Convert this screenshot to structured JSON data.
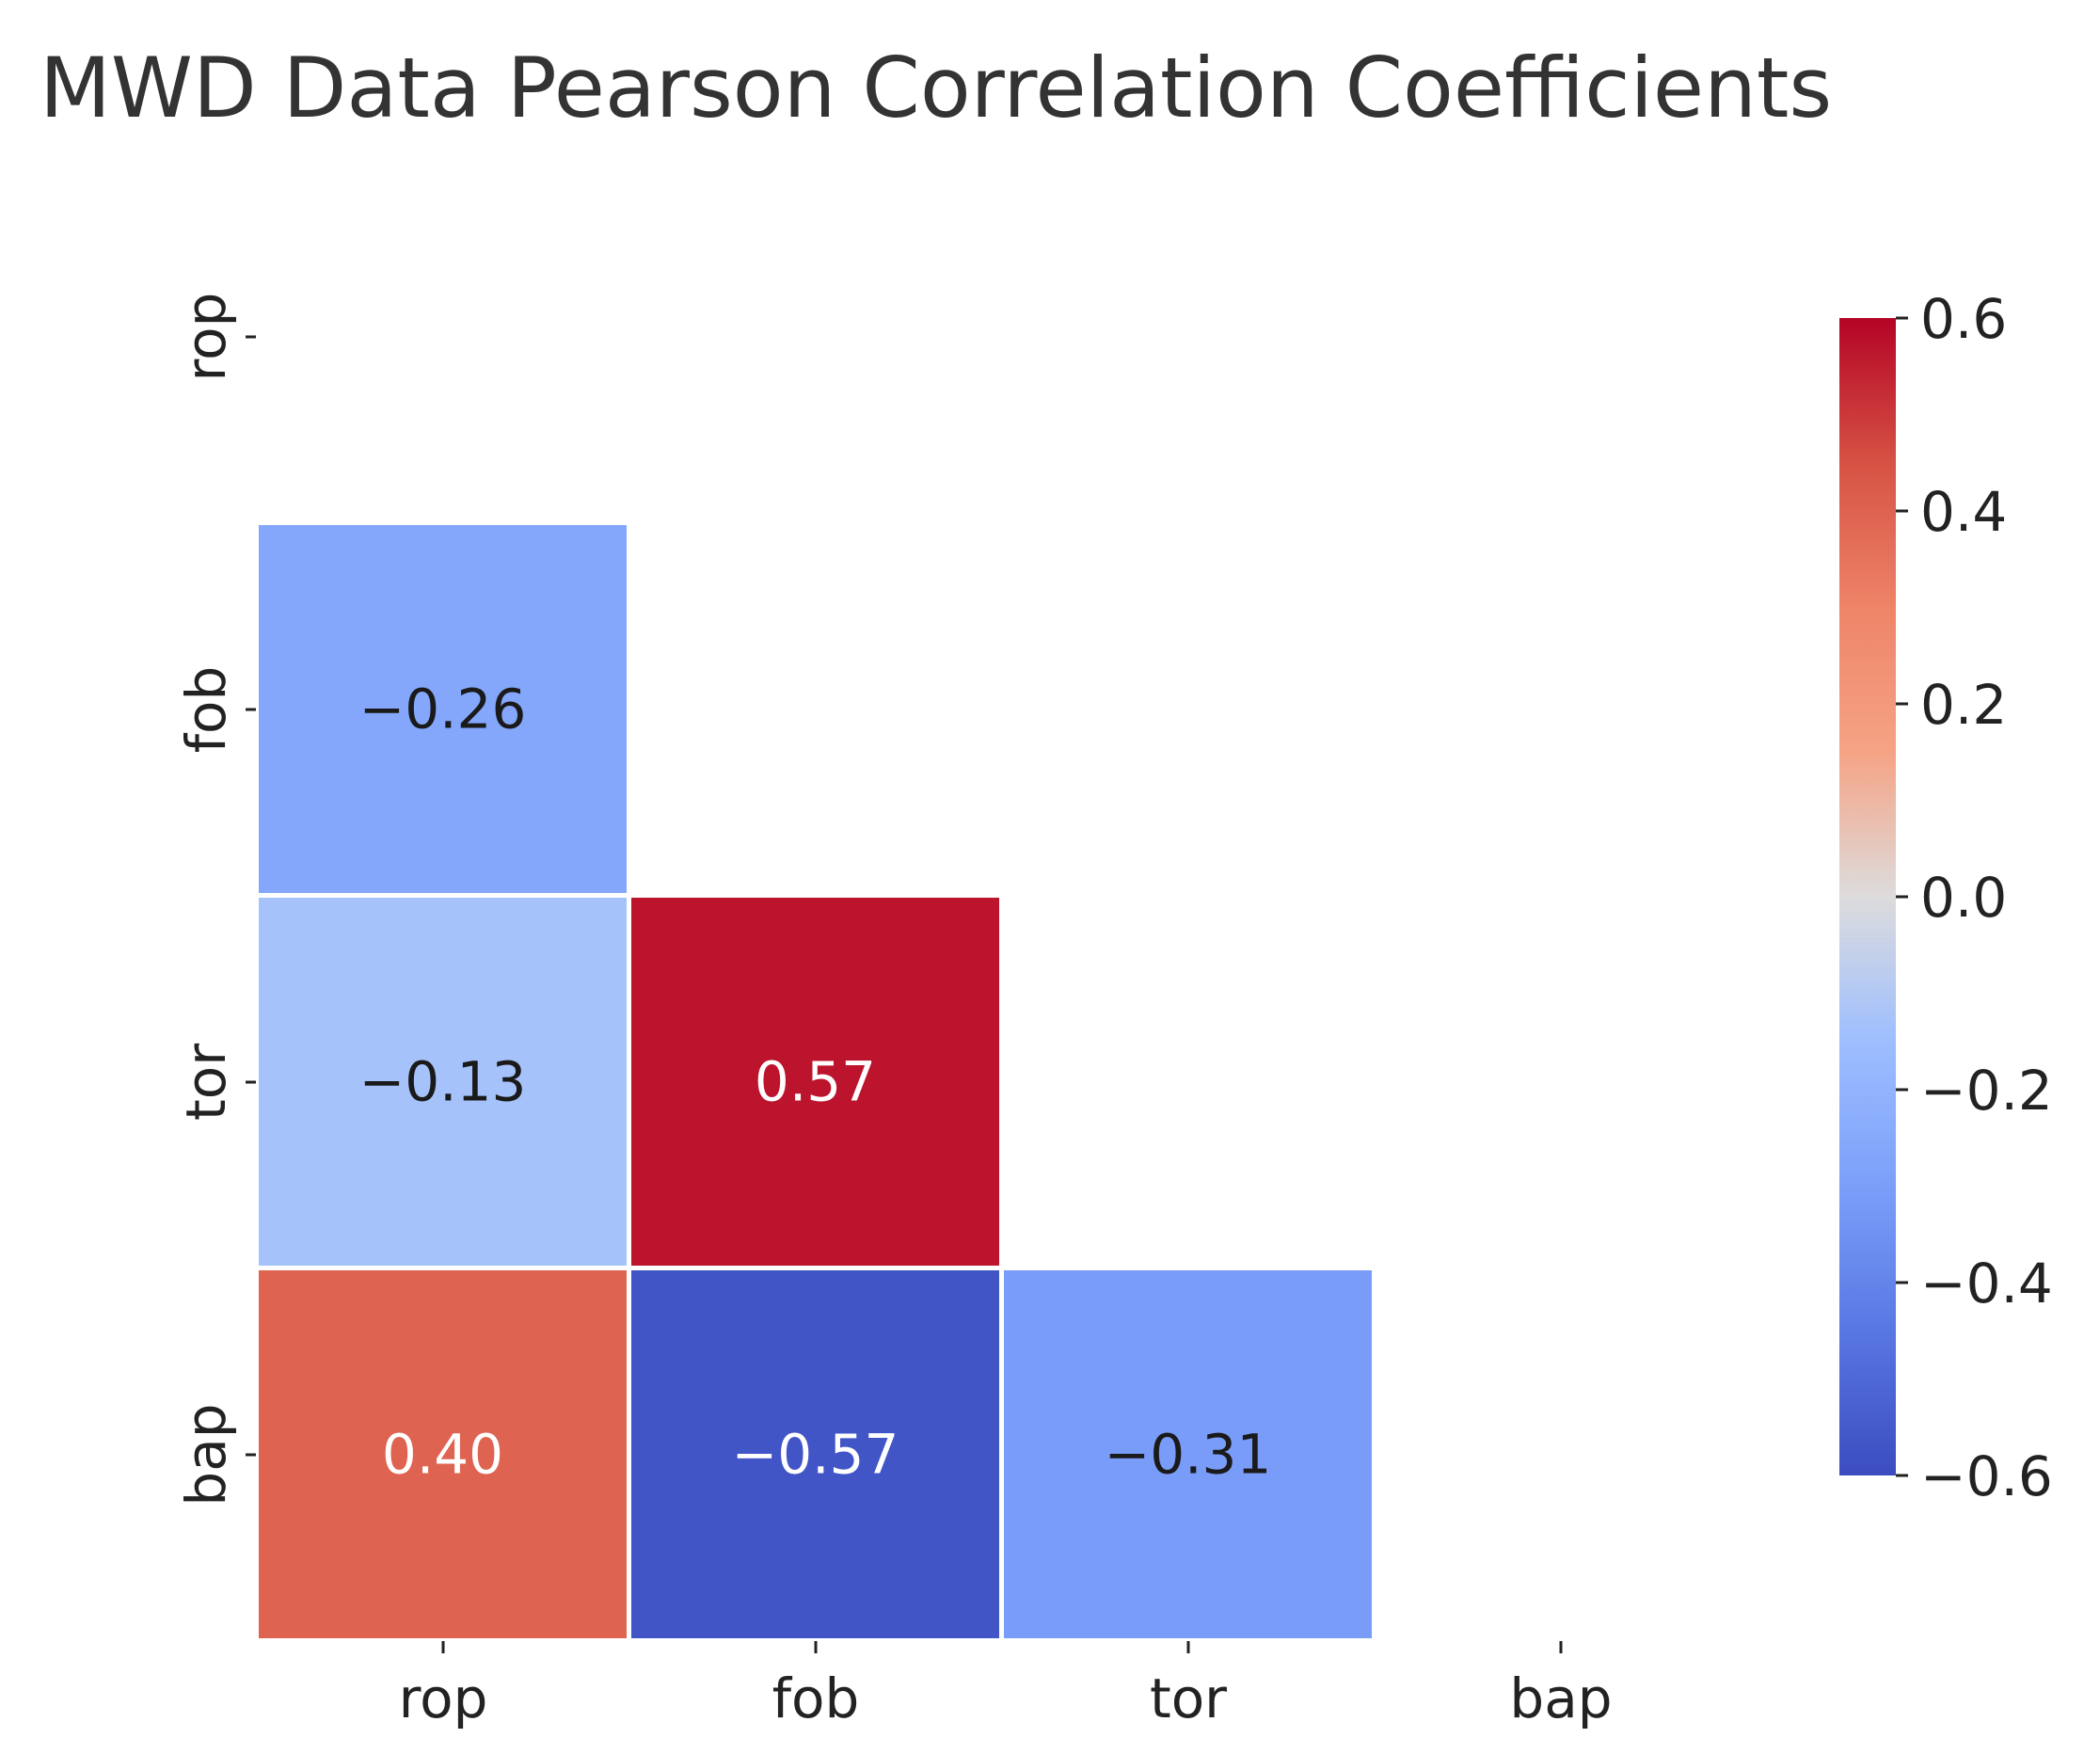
{
  "chart_data": {
    "type": "heatmap",
    "title": "MWD Data Pearson Correlation Coefficients",
    "x_categories": [
      "rop",
      "fob",
      "tor",
      "bap"
    ],
    "y_categories": [
      "rop",
      "fob",
      "tor",
      "bap"
    ],
    "mask": "upper triangle including diagonal",
    "cells": [
      {
        "row": "fob",
        "col": "rop",
        "value": -0.26,
        "label": "−0.26"
      },
      {
        "row": "tor",
        "col": "rop",
        "value": -0.13,
        "label": "−0.13"
      },
      {
        "row": "tor",
        "col": "fob",
        "value": 0.57,
        "label": "0.57"
      },
      {
        "row": "bap",
        "col": "rop",
        "value": 0.4,
        "label": "0.40"
      },
      {
        "row": "bap",
        "col": "fob",
        "value": -0.57,
        "label": "−0.57"
      },
      {
        "row": "bap",
        "col": "tor",
        "value": -0.31,
        "label": "−0.31"
      }
    ],
    "colormap": "coolwarm",
    "colorbar": {
      "range": [
        -0.6,
        0.6
      ],
      "ticks": [
        0.6,
        0.4,
        0.2,
        0.0,
        -0.2,
        -0.4,
        -0.6
      ],
      "tick_labels": [
        "0.6",
        "0.4",
        "0.2",
        "0.0",
        "−0.2",
        "−0.4",
        "−0.6"
      ]
    }
  }
}
